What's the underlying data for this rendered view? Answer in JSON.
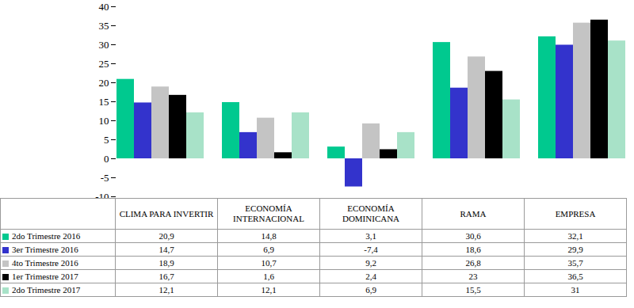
{
  "chart_data": {
    "type": "bar",
    "categories": [
      "CLIMA PARA INVERTIR",
      "ECONOMÍA INTERNACIONAL",
      "ECONOMÍA DOMINICANA",
      "RAMA",
      "EMPRESA"
    ],
    "series": [
      {
        "name": "2do Trimestre 2016",
        "color": "#00c98f",
        "values": [
          20.9,
          14.8,
          3.1,
          30.6,
          32.1
        ],
        "value_labels": [
          "20,9",
          "14,8",
          "3,1",
          "30,6",
          "32,1"
        ]
      },
      {
        "name": "3er Trimestre 2016",
        "color": "#3333cc",
        "values": [
          14.7,
          6.9,
          -7.4,
          18.6,
          29.9
        ],
        "value_labels": [
          "14,7",
          "6,9",
          "-7,4",
          "18,6",
          "29,9"
        ]
      },
      {
        "name": "4to Trimestre 2016",
        "color": "#c4c4c4",
        "values": [
          18.9,
          10.7,
          9.2,
          26.8,
          35.7
        ],
        "value_labels": [
          "18,9",
          "10,7",
          "9,2",
          "26,8",
          "35,7"
        ]
      },
      {
        "name": "1er Trimestre 2017",
        "color": "#000000",
        "values": [
          16.7,
          1.6,
          2.4,
          23,
          36.5
        ],
        "value_labels": [
          "16,7",
          "1,6",
          "2,4",
          "23",
          "36,5"
        ]
      },
      {
        "name": "2do Trimestre 2017",
        "color": "#a8e2c8",
        "values": [
          12.1,
          12.1,
          6.9,
          15.5,
          31
        ],
        "value_labels": [
          "12,1",
          "12,1",
          "6,9",
          "15,5",
          "31"
        ]
      }
    ],
    "ylim": [
      -10,
      40
    ],
    "yticks": [
      -10,
      -5,
      0,
      5,
      10,
      15,
      20,
      25,
      30,
      35,
      40
    ],
    "grid": false,
    "legend": "bottom"
  }
}
